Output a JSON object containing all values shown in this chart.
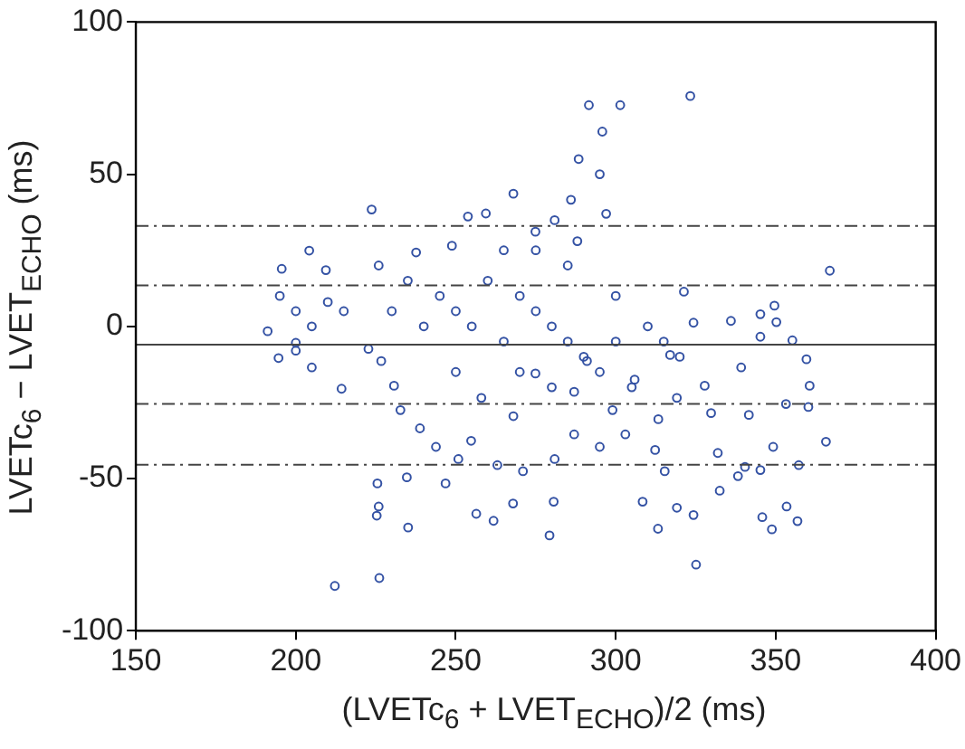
{
  "chart_data": {
    "type": "scatter",
    "xlabel": "(LVETc$_{6}$ + LVET$_{ECHO}$)/2 (ms)",
    "ylabel": "LVETc$_{6}$ − LVET$_{ECHO}$ (ms)",
    "xlim": [
      150,
      400
    ],
    "xticks": [
      150,
      200,
      250,
      300,
      350,
      400
    ],
    "ylim": [
      -100,
      100
    ],
    "yticks": [
      -100,
      -50,
      0,
      50,
      100
    ],
    "grid": false,
    "legend": false,
    "marker": "circle",
    "ref_lines": [
      {
        "axis": "y",
        "value": 33,
        "line_style": "dashed",
        "color": "#444444"
      },
      {
        "axis": "y",
        "value": 13.5,
        "line_style": "dashed",
        "color": "#444444"
      },
      {
        "axis": "y",
        "value": -6,
        "line_style": "solid",
        "color": "#444444"
      },
      {
        "axis": "y",
        "value": -25.5,
        "line_style": "dashed",
        "color": "#444444"
      },
      {
        "axis": "y",
        "value": -45.5,
        "line_style": "dashed",
        "color": "#444444"
      }
    ],
    "series": [
      {
        "color": "#3452a4",
        "x": [
          291.6,
          301.4,
          323.3,
          295.8,
          288.4,
          295,
          268,
          223.7,
          286,
          297,
          366.9,
          321.3,
          336,
          324.3,
          204.2,
          195.6,
          191.2,
          209.4,
          225.9,
          237.6,
          248.8,
          253.8,
          259.4,
          274.9,
          280.9,
          345.2,
          349.6,
          350.2,
          355.2,
          270,
          275,
          280,
          285,
          265,
          290,
          270,
          280,
          260,
          285,
          295,
          300,
          255,
          250,
          245,
          240,
          235,
          230,
          300,
          310,
          315,
          320,
          265,
          275,
          288,
          305,
          250,
          214.3,
          212.2,
          226.1,
          225.5,
          225.9,
          225.3,
          235.1,
          256.4,
          261.8,
          279.3,
          267.9,
          280.6,
          325.1,
          324.3,
          313.2,
          308.4,
          319.1,
          332.5,
          345.8,
          348.8,
          356.8,
          353.4,
          365.7,
          360.2,
          360.6,
          359.6,
          339.2,
          341.6,
          338.2,
          340.4,
          345.2,
          349.2,
          353.2,
          345.2,
          357.2,
          329.8,
          327.8,
          331.9,
          312.3,
          315.3,
          303,
          295,
          287,
          280.9,
          271,
          263,
          254.8,
          250.8,
          243.8,
          238.8,
          232.7,
          230.7,
          226.7,
          222.7,
          234.7,
          246.8,
          305.9,
          317,
          319.1,
          287,
          274.9,
          291,
          268,
          258,
          299,
          313.3,
          194.6,
          205,
          200,
          200,
          195,
          205,
          210,
          200,
          215
        ],
        "values": [
          72.7,
          72.7,
          75.7,
          64,
          55,
          50,
          43.6,
          38.4,
          41.6,
          37,
          18.3,
          11.4,
          1.8,
          1.2,
          24.9,
          18.9,
          -1.6,
          18.5,
          20,
          24.3,
          26.5,
          36.1,
          37.1,
          31.1,
          34.9,
          4,
          6.8,
          1.4,
          -4.6,
          10,
          5,
          0,
          -5,
          -5,
          -10,
          -15,
          -20,
          15,
          20,
          -15,
          -5,
          0,
          5,
          10,
          0,
          15,
          5,
          10,
          0,
          -5,
          -10,
          25,
          25,
          28,
          -20,
          -15,
          -20.5,
          -85.3,
          -82.7,
          -51.6,
          -59.2,
          -62.2,
          -66.1,
          -61.6,
          -63.9,
          -68.7,
          -58.2,
          -57.6,
          -78.3,
          -62,
          -66.5,
          -57.6,
          -59.6,
          -54,
          -62.7,
          -66.7,
          -64,
          -59.2,
          -37.9,
          -26.5,
          -19.5,
          -10.8,
          -13.5,
          -29.1,
          -49.2,
          -46.2,
          -47.2,
          -39.6,
          -25.5,
          -3.4,
          -45.6,
          -28.5,
          -19.5,
          -41.6,
          -40.6,
          -47.6,
          -35.5,
          -39.6,
          -35.5,
          -43.6,
          -47.6,
          -45.6,
          -37.6,
          -43.6,
          -39.6,
          -33.5,
          -27.5,
          -19.5,
          -11.4,
          -7.4,
          -49.6,
          -51.6,
          -17.5,
          -9.4,
          -23.5,
          -21.5,
          -15.5,
          -11.4,
          -29.5,
          -23.5,
          -27.5,
          -30.5,
          -10.4,
          -13.5,
          -5.4,
          5,
          10,
          0,
          8,
          -8,
          5
        ]
      }
    ]
  }
}
